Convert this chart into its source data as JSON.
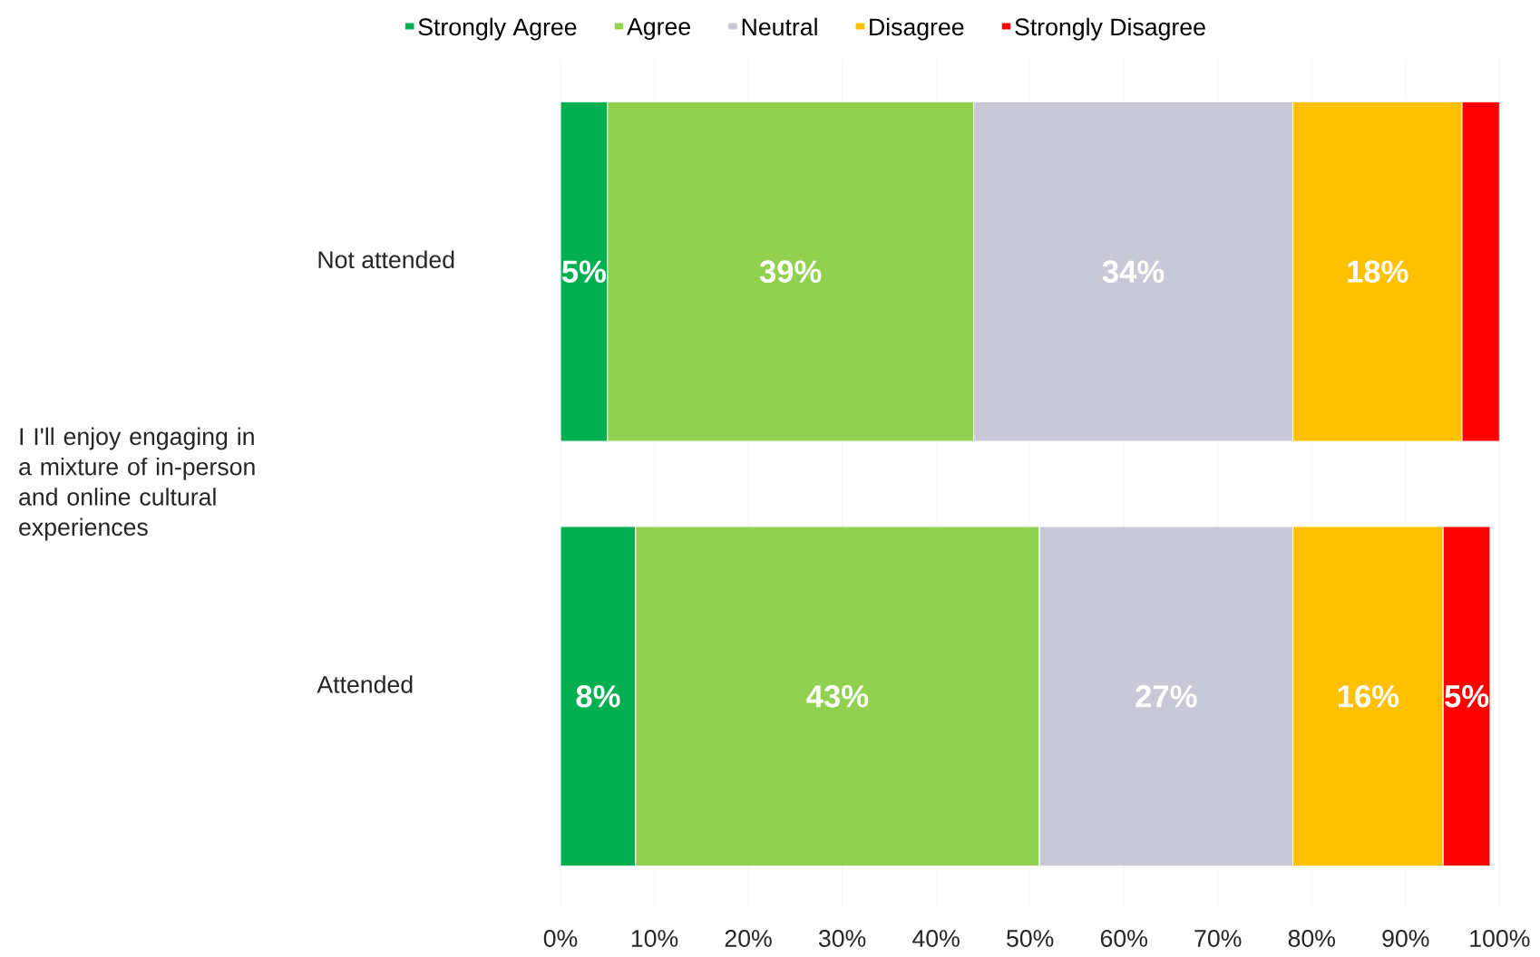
{
  "chart_data": {
    "type": "bar",
    "orientation": "horizontal",
    "stacked": true,
    "ylabel": "I I'll enjoy engaging in a mixture of in-person and online cultural experiences",
    "categories": [
      "Not attended",
      "Attended"
    ],
    "series": [
      {
        "name": "Strongly Agree",
        "color": "#00b050",
        "values": [
          5,
          8
        ],
        "value_labels": [
          "5%",
          "8%"
        ]
      },
      {
        "name": "Agree",
        "color": "#92d050",
        "values": [
          39,
          43
        ],
        "value_labels": [
          "39%",
          "43%"
        ]
      },
      {
        "name": "Neutral",
        "color": "#c9c8d6",
        "values": [
          34,
          27
        ],
        "value_labels": [
          "34%",
          "27%"
        ]
      },
      {
        "name": "Disagree",
        "color": "#ffc000",
        "values": [
          18,
          16
        ],
        "value_labels": [
          "18%",
          "16%"
        ]
      },
      {
        "name": "Strongly Disagree",
        "color": "#ff0000",
        "values": [
          4,
          5
        ],
        "value_labels": [
          null,
          "5%"
        ]
      }
    ],
    "xlim": [
      0,
      100
    ],
    "xticks": [
      {
        "value": 0,
        "label": "0%"
      },
      {
        "value": 10,
        "label": "10%"
      },
      {
        "value": 20,
        "label": "20%"
      },
      {
        "value": 30,
        "label": "30%"
      },
      {
        "value": 40,
        "label": "40%"
      },
      {
        "value": 50,
        "label": "50%"
      },
      {
        "value": 60,
        "label": "60%"
      },
      {
        "value": 70,
        "label": "70%"
      },
      {
        "value": 80,
        "label": "80%"
      },
      {
        "value": 90,
        "label": "90%"
      },
      {
        "value": 100,
        "label": "100%"
      }
    ],
    "grid": "x",
    "legend": "top"
  }
}
